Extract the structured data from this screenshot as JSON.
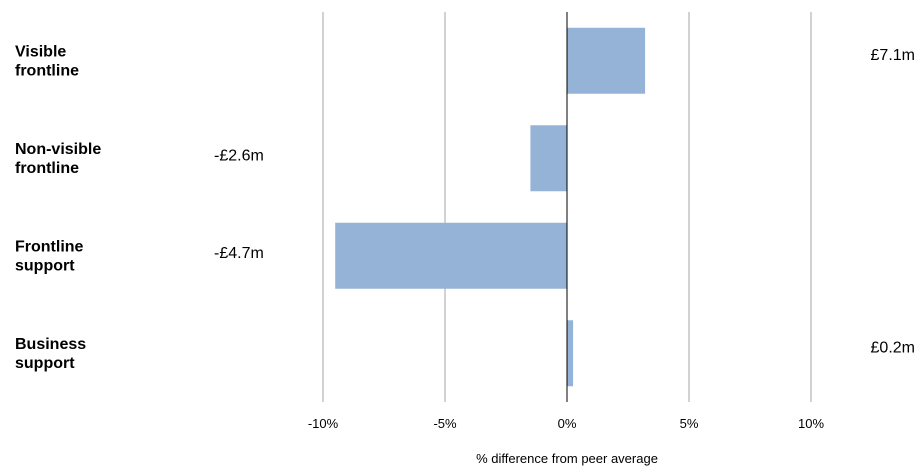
{
  "chart_data": {
    "type": "bar",
    "orientation": "horizontal",
    "categories": [
      "Visible\nfrontline",
      "Non-visible\nfrontline",
      "Frontline\nsupport",
      "Business\nsupport"
    ],
    "values": [
      3.2,
      -1.5,
      -9.5,
      0.25
    ],
    "value_labels": [
      "£7.1m",
      "-£2.6m",
      "-£4.7m",
      "£0.2m"
    ],
    "xlim": [
      -10,
      10
    ],
    "xticks": [
      -10,
      -5,
      0,
      5,
      10
    ],
    "xtick_labels": [
      "-10%",
      "-5%",
      "0%",
      "5%",
      "10%"
    ],
    "xlabel": "% difference from peer average",
    "ylabel": "",
    "title": "",
    "grid": "vertical",
    "colors": {
      "bar": "#95B3D7",
      "grid": "#A6A6A6",
      "zero_line": "#000000"
    }
  }
}
